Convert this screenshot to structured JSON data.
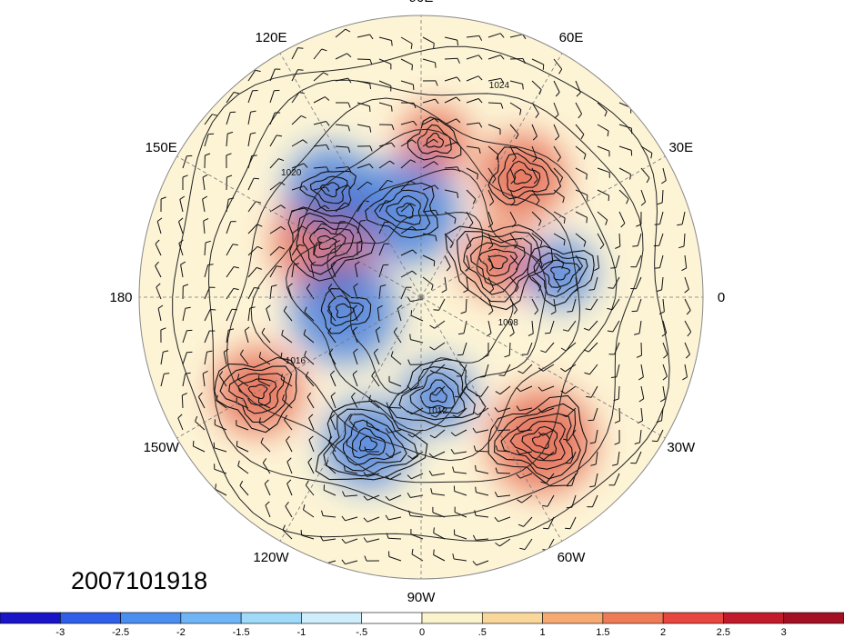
{
  "map": {
    "timestamp": "2007101918",
    "longitude_labels": [
      {
        "text": "90E",
        "lon": 90
      },
      {
        "text": "60E",
        "lon": 60
      },
      {
        "text": "30E",
        "lon": 30
      },
      {
        "text": "0",
        "lon": 0
      },
      {
        "text": "30W",
        "lon": -30
      },
      {
        "text": "60W",
        "lon": -60
      },
      {
        "text": "90W",
        "lon": -90
      },
      {
        "text": "120W",
        "lon": -120
      },
      {
        "text": "150W",
        "lon": -150
      },
      {
        "text": "180",
        "lon": 180
      },
      {
        "text": "150E",
        "lon": 150
      },
      {
        "text": "120E",
        "lon": 120
      }
    ],
    "contour_labels": [
      "1008",
      "1012",
      "1016",
      "1020",
      "1024"
    ]
  },
  "colorbar": {
    "labels": [
      "-3",
      "-2.5",
      "-2",
      "-1.5",
      "-1",
      "-.5",
      "0",
      ".5",
      "1",
      "1.5",
      "2",
      "2.5",
      "3"
    ],
    "colors": [
      "#1a14c8",
      "#2f5fe8",
      "#4a8ef0",
      "#6fb4f5",
      "#9fdaf8",
      "#cfeefb",
      "#ffffff",
      "#fbf3cc",
      "#f9d79a",
      "#f5aa72",
      "#ef7a57",
      "#e8453e",
      "#c21a2a",
      "#a30f23"
    ]
  },
  "features": [
    {
      "type": "anomaly",
      "sign": "positive",
      "lon": 85,
      "lat": 40
    },
    {
      "type": "anomaly",
      "sign": "positive",
      "lon": 50,
      "lat": 40
    },
    {
      "type": "anomaly",
      "sign": "positive",
      "lon": 150,
      "lat": 55
    },
    {
      "type": "anomaly",
      "sign": "positive",
      "lon": 25,
      "lat": 63
    },
    {
      "type": "anomaly",
      "sign": "negative",
      "lon": 130,
      "lat": 45
    },
    {
      "type": "anomaly",
      "sign": "negative",
      "lon": 100,
      "lat": 62
    },
    {
      "type": "anomaly",
      "sign": "negative",
      "lon": -80,
      "lat": 58
    },
    {
      "type": "anomaly",
      "sign": "negative",
      "lon": -110,
      "lat": 40
    },
    {
      "type": "anomaly",
      "sign": "negative",
      "lon": -170,
      "lat": 65
    },
    {
      "type": "anomaly",
      "sign": "negative",
      "lon": 10,
      "lat": 45
    },
    {
      "type": "anomaly",
      "sign": "positive",
      "lon": -150,
      "lat": 30
    },
    {
      "type": "anomaly",
      "sign": "positive",
      "lon": -50,
      "lat": 30
    }
  ]
}
